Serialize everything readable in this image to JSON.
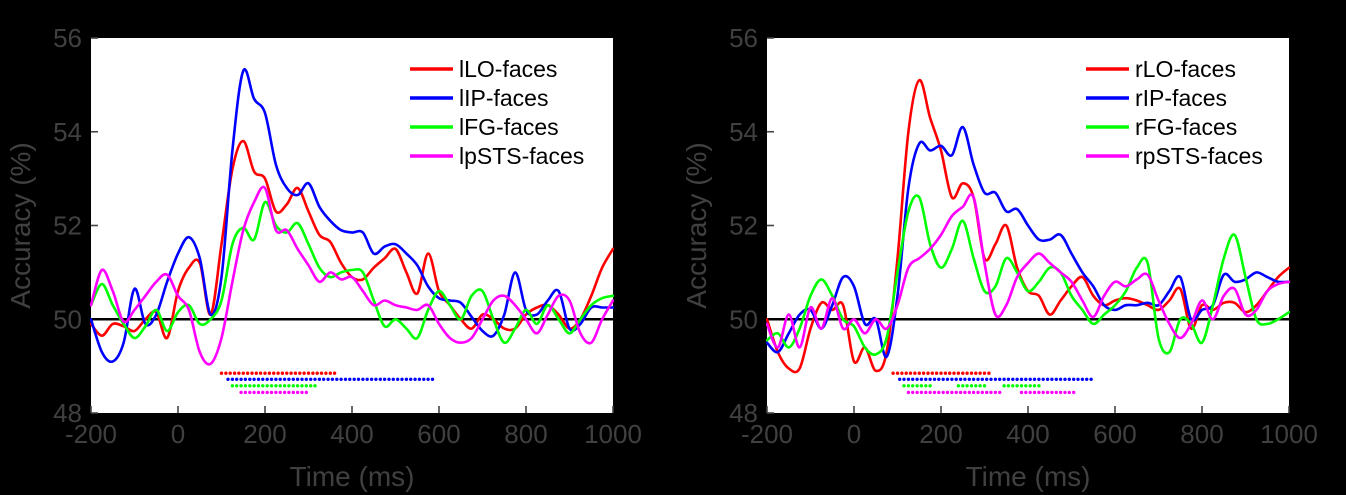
{
  "figure": {
    "background": "#000000",
    "plot_bg": "#ffffff",
    "axis_text_color": "#404040",
    "tick_color": "#454545",
    "baseline_color": "#000000",
    "legend_text_color": "#000000"
  },
  "chart_data": [
    {
      "type": "line",
      "panel": "left-hemisphere",
      "title": "",
      "xlabel": "Time (ms)",
      "ylabel": "Accuracy (%)",
      "xlim": [
        -200,
        1000
      ],
      "ylim": [
        48,
        56
      ],
      "xticks": [
        -200,
        0,
        200,
        400,
        600,
        800,
        1000
      ],
      "yticks": [
        48,
        50,
        52,
        54,
        56
      ],
      "grid": false,
      "legend_position": "upper right",
      "baseline_y": 50,
      "x_start": -200,
      "x_step": 25,
      "series": [
        {
          "name": "lLO-faces",
          "color": "#ff0000",
          "values": [
            49.9,
            49.65,
            49.9,
            49.85,
            49.75,
            50.0,
            50.15,
            49.6,
            50.6,
            51.1,
            51.2,
            50.1,
            51.6,
            53.2,
            53.8,
            53.15,
            53.0,
            52.3,
            52.45,
            52.8,
            52.3,
            51.8,
            51.65,
            51.2,
            50.9,
            50.85,
            51.1,
            51.3,
            51.5,
            51.0,
            50.55,
            51.4,
            50.6,
            50.3,
            50.0,
            49.8,
            50.1,
            50.0,
            49.8,
            49.8,
            50.1,
            50.25,
            50.3,
            50.1,
            49.8,
            50.0,
            50.5,
            51.1,
            51.5
          ]
        },
        {
          "name": "lIP-faces",
          "color": "#0000ff",
          "values": [
            50.0,
            49.3,
            49.1,
            49.5,
            50.65,
            49.9,
            50.1,
            50.8,
            51.4,
            51.75,
            51.3,
            50.1,
            50.9,
            53.6,
            55.3,
            54.7,
            54.4,
            53.3,
            52.8,
            52.65,
            52.9,
            52.4,
            52.1,
            51.9,
            51.85,
            51.85,
            51.4,
            51.55,
            51.6,
            51.4,
            51.15,
            50.7,
            50.45,
            50.4,
            50.35,
            50.05,
            49.75,
            49.65,
            50.1,
            51.0,
            50.2,
            50.1,
            50.4,
            50.6,
            49.8,
            49.9,
            50.25,
            50.25,
            50.25
          ]
        },
        {
          "name": "lFG-faces",
          "color": "#00ff00",
          "values": [
            50.3,
            50.75,
            50.3,
            49.9,
            49.6,
            49.85,
            50.2,
            49.75,
            50.15,
            50.3,
            49.9,
            50.0,
            50.4,
            51.6,
            51.95,
            51.7,
            52.5,
            52.0,
            51.85,
            52.05,
            51.6,
            51.1,
            50.9,
            51.0,
            51.05,
            51.0,
            50.4,
            49.85,
            50.0,
            49.8,
            49.6,
            50.2,
            50.6,
            50.3,
            50.0,
            50.5,
            50.6,
            50.0,
            49.5,
            49.8,
            50.2,
            49.9,
            50.3,
            50.0,
            49.7,
            50.0,
            50.3,
            50.45,
            50.5
          ]
        },
        {
          "name": "lpSTS-faces",
          "color": "#ff00ff",
          "values": [
            50.3,
            51.05,
            50.6,
            49.95,
            50.2,
            50.5,
            50.8,
            50.95,
            50.5,
            50.2,
            49.3,
            49.05,
            49.6,
            50.8,
            51.9,
            52.5,
            52.8,
            51.9,
            51.9,
            51.5,
            51.15,
            50.8,
            51.0,
            50.85,
            50.9,
            50.6,
            50.3,
            50.4,
            50.3,
            50.25,
            50.2,
            50.3,
            49.9,
            49.6,
            49.5,
            49.6,
            50.0,
            50.4,
            50.5,
            50.3,
            50.0,
            49.7,
            50.1,
            50.5,
            50.4,
            49.7,
            49.5,
            50.0,
            50.4
          ]
        }
      ],
      "significance_markers": [
        {
          "series": "lLO-faces",
          "color": "#ff0000",
          "y": 48.85,
          "segments": [
            [
              100,
              365
            ]
          ]
        },
        {
          "series": "lIP-faces",
          "color": "#0000ff",
          "y": 48.72,
          "segments": [
            [
              115,
              585
            ]
          ]
        },
        {
          "series": "lFG-faces",
          "color": "#00ff00",
          "y": 48.58,
          "segments": [
            [
              125,
              315
            ]
          ]
        },
        {
          "series": "lpSTS-faces",
          "color": "#ff00ff",
          "y": 48.44,
          "segments": [
            [
              145,
              295
            ]
          ]
        }
      ]
    },
    {
      "type": "line",
      "panel": "right-hemisphere",
      "title": "",
      "xlabel": "Time (ms)",
      "ylabel": "Accuracy (%)",
      "xlim": [
        -200,
        1000
      ],
      "ylim": [
        48,
        56
      ],
      "xticks": [
        -200,
        0,
        200,
        400,
        600,
        800,
        1000
      ],
      "yticks": [
        48,
        50,
        52,
        54,
        56
      ],
      "grid": false,
      "legend_position": "upper right",
      "baseline_y": 50,
      "x_start": -200,
      "x_step": 25,
      "series": [
        {
          "name": "rLO-faces",
          "color": "#ff0000",
          "values": [
            50.0,
            49.3,
            48.95,
            48.95,
            49.8,
            50.35,
            50.2,
            50.3,
            49.1,
            49.4,
            48.9,
            49.3,
            51.3,
            54.0,
            55.1,
            54.3,
            53.6,
            52.6,
            52.9,
            52.6,
            51.3,
            51.6,
            52.0,
            51.1,
            50.6,
            50.5,
            50.1,
            50.4,
            50.7,
            50.9,
            50.5,
            50.3,
            50.4,
            50.45,
            50.4,
            50.3,
            50.2,
            50.4,
            50.65,
            49.8,
            50.3,
            50.2,
            50.35,
            50.35,
            50.15,
            50.3,
            50.6,
            50.9,
            51.1
          ]
        },
        {
          "name": "rIP-faces",
          "color": "#0000ff",
          "values": [
            49.5,
            49.3,
            49.7,
            50.1,
            50.2,
            49.8,
            50.3,
            50.9,
            50.7,
            49.9,
            50.0,
            49.2,
            50.5,
            52.8,
            53.75,
            53.6,
            53.7,
            53.5,
            54.1,
            53.3,
            52.7,
            52.7,
            52.3,
            52.35,
            52.0,
            51.7,
            51.7,
            51.8,
            51.4,
            51.0,
            50.7,
            50.3,
            50.2,
            50.3,
            50.3,
            50.35,
            50.3,
            50.6,
            50.9,
            50.0,
            50.2,
            50.3,
            50.95,
            50.8,
            50.85,
            51.0,
            50.9,
            50.8,
            50.8
          ]
        },
        {
          "name": "rFG-faces",
          "color": "#00ff00",
          "values": [
            49.55,
            49.7,
            49.4,
            49.8,
            50.5,
            50.85,
            50.5,
            50.0,
            49.85,
            49.4,
            49.25,
            49.6,
            51.0,
            52.3,
            52.6,
            51.6,
            51.1,
            51.5,
            52.1,
            51.3,
            50.6,
            50.7,
            51.3,
            51.0,
            50.6,
            50.8,
            51.1,
            51.0,
            50.5,
            50.2,
            49.9,
            50.1,
            50.3,
            50.6,
            51.1,
            51.2,
            49.6,
            49.3,
            50.0,
            49.9,
            49.5,
            50.3,
            51.3,
            51.8,
            50.9,
            50.0,
            49.9,
            50.0,
            50.15
          ]
        },
        {
          "name": "rpSTS-faces",
          "color": "#ff00ff",
          "values": [
            49.9,
            49.4,
            50.1,
            49.4,
            50.25,
            49.8,
            50.45,
            49.8,
            50.0,
            49.7,
            50.0,
            49.8,
            50.3,
            51.1,
            51.3,
            51.5,
            51.8,
            52.2,
            52.4,
            52.6,
            51.2,
            50.1,
            50.3,
            50.9,
            51.2,
            51.4,
            51.2,
            51.0,
            50.8,
            50.4,
            50.05,
            50.5,
            50.8,
            50.7,
            50.85,
            50.95,
            50.4,
            49.9,
            49.6,
            49.9,
            50.4,
            50.0,
            50.5,
            50.65,
            50.1,
            50.2,
            50.6,
            50.75,
            50.8
          ]
        }
      ],
      "significance_markers": [
        {
          "series": "rLO-faces",
          "color": "#ff0000",
          "y": 48.85,
          "segments": [
            [
              90,
              310
            ]
          ]
        },
        {
          "series": "rIP-faces",
          "color": "#0000ff",
          "y": 48.72,
          "segments": [
            [
              105,
              545
            ]
          ]
        },
        {
          "series": "rFG-faces",
          "color": "#00ff00",
          "y": 48.58,
          "segments": [
            [
              115,
              175
            ],
            [
              240,
              300
            ],
            [
              345,
              430
            ]
          ]
        },
        {
          "series": "rpSTS-faces",
          "color": "#ff00ff",
          "y": 48.44,
          "segments": [
            [
              125,
              335
            ],
            [
              385,
              505
            ]
          ]
        }
      ]
    }
  ]
}
